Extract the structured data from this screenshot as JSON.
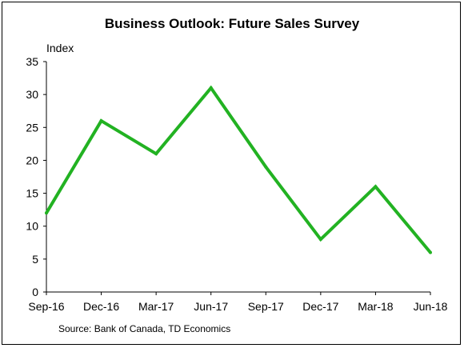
{
  "chart_data": {
    "type": "line",
    "title": "Business Outlook: Future Sales Survey",
    "ylabel": "Index",
    "xlabel": "",
    "source": "Source: Bank of Canada, TD Economics",
    "x": [
      "Sep-16",
      "Dec-16",
      "Mar-17",
      "Jun-17",
      "Sep-17",
      "Dec-17",
      "Mar-18",
      "Jun-18"
    ],
    "series": [
      {
        "name": "",
        "color": "#22b222",
        "values": [
          12,
          26,
          21,
          31,
          19,
          8,
          16,
          6
        ]
      }
    ],
    "ylim": [
      0,
      35
    ],
    "yticks": [
      0,
      5,
      10,
      15,
      20,
      25,
      30,
      35
    ],
    "grid": false,
    "legend": "none"
  }
}
